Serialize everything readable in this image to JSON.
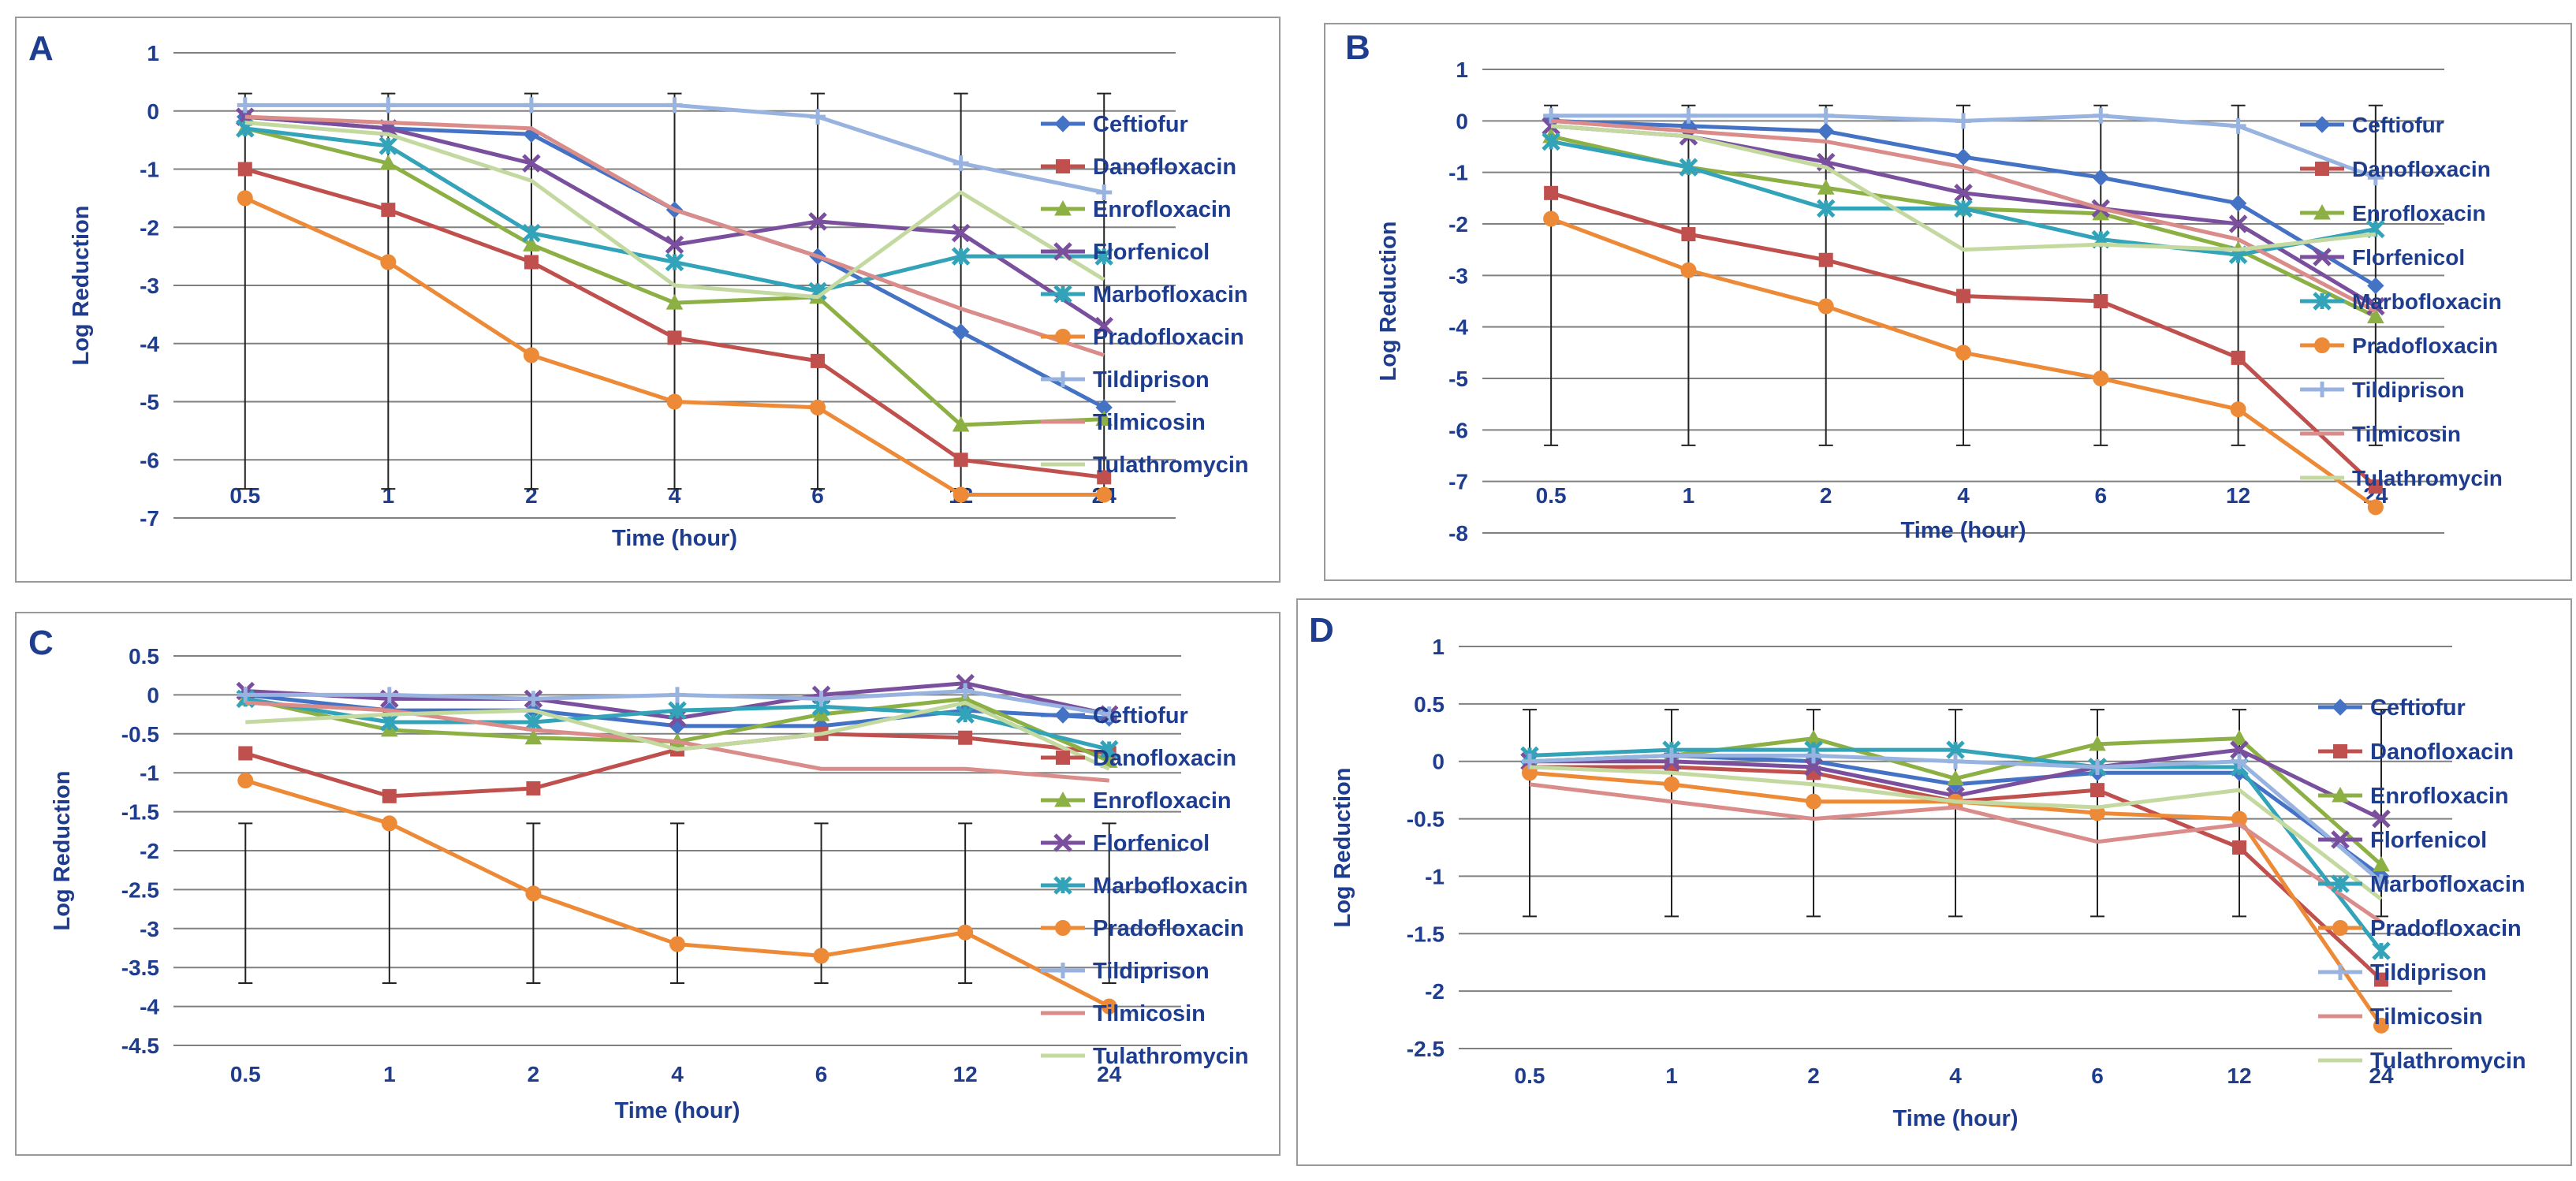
{
  "colors": {
    "Ceftiofur": "#4472C4",
    "Danofloxacin": "#C0504D",
    "Enrofloxacin": "#8DB045",
    "Florfenicol": "#7A4F9D",
    "Marbofloxacin": "#32A3B8",
    "Pradofloxacin": "#ED8A37",
    "Tildiprison": "#98B3DF",
    "Tilmicosin": "#DA8C8A",
    "Tulathromycin": "#C4D9A0",
    "axis_text": "#1F3D8F",
    "panel_label": "#1F3D8F",
    "error_bar": "#222222",
    "gridline": "#808080"
  },
  "chart_data": [
    {
      "panel": "A",
      "type": "line",
      "xlabel": "Time (hour)",
      "ylabel": "Log Reduction",
      "categories": [
        "0.5",
        "1",
        "2",
        "4",
        "6",
        "12",
        "24"
      ],
      "ylim": [
        -7,
        1
      ],
      "ytick_step": 1,
      "yticks": [
        "1",
        "0",
        "-1",
        "-2",
        "-3",
        "-4",
        "-5",
        "-6",
        "-7"
      ],
      "error_bar": {
        "upper": 0.3,
        "lower": -6.5
      },
      "series": [
        {
          "name": "Ceftiofur",
          "marker": "diamond",
          "values": [
            -0.1,
            -0.3,
            -0.4,
            -1.7,
            -2.5,
            -3.8,
            -5.1
          ]
        },
        {
          "name": "Danofloxacin",
          "marker": "square",
          "values": [
            -1.0,
            -1.7,
            -2.6,
            -3.9,
            -4.3,
            -6.0,
            -6.3
          ]
        },
        {
          "name": "Enrofloxacin",
          "marker": "triangle",
          "values": [
            -0.3,
            -0.9,
            -2.3,
            -3.3,
            -3.2,
            -5.4,
            -5.3
          ]
        },
        {
          "name": "Florfenicol",
          "marker": "x",
          "values": [
            -0.1,
            -0.3,
            -0.9,
            -2.3,
            -1.9,
            -2.1,
            -3.7
          ]
        },
        {
          "name": "Marbofloxacin",
          "marker": "star",
          "values": [
            -0.3,
            -0.6,
            -2.1,
            -2.6,
            -3.1,
            -2.5,
            -2.5
          ]
        },
        {
          "name": "Pradofloxacin",
          "marker": "circle",
          "values": [
            -1.5,
            -2.6,
            -4.2,
            -5.0,
            -5.1,
            -6.6,
            -6.6
          ]
        },
        {
          "name": "Tildiprison",
          "marker": "plus",
          "values": [
            0.1,
            0.1,
            0.1,
            0.1,
            -0.1,
            -0.9,
            -1.4
          ]
        },
        {
          "name": "Tilmicosin",
          "marker": "line",
          "values": [
            -0.1,
            -0.2,
            -0.3,
            -1.7,
            -2.5,
            -3.4,
            -4.2
          ]
        },
        {
          "name": "Tulathromycin",
          "marker": "line",
          "values": [
            -0.2,
            -0.4,
            -1.2,
            -3.0,
            -3.2,
            -1.4,
            -2.9
          ]
        }
      ]
    },
    {
      "panel": "B",
      "type": "line",
      "xlabel": "Time (hour)",
      "ylabel": "Log Reduction",
      "categories": [
        "0.5",
        "1",
        "2",
        "4",
        "6",
        "12",
        "24"
      ],
      "ylim": [
        -8,
        1
      ],
      "ytick_step": 1,
      "yticks": [
        "1",
        "0",
        "-1",
        "-2",
        "-3",
        "-4",
        "-5",
        "-6",
        "-7",
        "-8"
      ],
      "error_bar": {
        "upper": 0.3,
        "lower": -6.3
      },
      "series": [
        {
          "name": "Ceftiofur",
          "marker": "diamond",
          "values": [
            0.0,
            -0.1,
            -0.2,
            -0.7,
            -1.1,
            -1.6,
            -3.2
          ]
        },
        {
          "name": "Danofloxacin",
          "marker": "square",
          "values": [
            -1.4,
            -2.2,
            -2.7,
            -3.4,
            -3.5,
            -4.6,
            -7.1
          ]
        },
        {
          "name": "Enrofloxacin",
          "marker": "triangle",
          "values": [
            -0.3,
            -0.9,
            -1.3,
            -1.7,
            -1.8,
            -2.5,
            -3.8
          ]
        },
        {
          "name": "Florfenicol",
          "marker": "x",
          "values": [
            -0.1,
            -0.3,
            -0.8,
            -1.4,
            -1.7,
            -2.0,
            -3.6
          ]
        },
        {
          "name": "Marbofloxacin",
          "marker": "star",
          "values": [
            -0.4,
            -0.9,
            -1.7,
            -1.7,
            -2.3,
            -2.6,
            -2.1
          ]
        },
        {
          "name": "Pradofloxacin",
          "marker": "circle",
          "values": [
            -1.9,
            -2.9,
            -3.6,
            -4.5,
            -5.0,
            -5.6,
            -7.5
          ]
        },
        {
          "name": "Tildiprison",
          "marker": "plus",
          "values": [
            0.1,
            0.1,
            0.1,
            0.0,
            0.1,
            -0.1,
            -1.1
          ]
        },
        {
          "name": "Tilmicosin",
          "marker": "line",
          "values": [
            0.0,
            -0.2,
            -0.4,
            -0.9,
            -1.7,
            -2.3,
            -3.7
          ]
        },
        {
          "name": "Tulathromycin",
          "marker": "line",
          "values": [
            -0.1,
            -0.3,
            -0.9,
            -2.5,
            -2.4,
            -2.5,
            -2.2
          ]
        }
      ]
    },
    {
      "panel": "C",
      "type": "line",
      "xlabel": "Time (hour)",
      "ylabel": "Log Reduction",
      "categories": [
        "0.5",
        "1",
        "2",
        "4",
        "6",
        "12",
        "24"
      ],
      "ylim": [
        -4.5,
        0.5
      ],
      "ytick_step": 0.5,
      "yticks": [
        "0.5",
        "0",
        "-0.5",
        "-1",
        "-1.5",
        "-2",
        "-2.5",
        "-3",
        "-3.5",
        "-4",
        "-4.5"
      ],
      "error_bar": {
        "upper": -1.65,
        "lower": -3.7
      },
      "series": [
        {
          "name": "Ceftiofur",
          "marker": "diamond",
          "values": [
            0.0,
            -0.2,
            -0.2,
            -0.4,
            -0.4,
            -0.2,
            -0.3
          ]
        },
        {
          "name": "Danofloxacin",
          "marker": "square",
          "values": [
            -0.75,
            -1.3,
            -1.2,
            -0.7,
            -0.5,
            -0.55,
            -0.75
          ]
        },
        {
          "name": "Enrofloxacin",
          "marker": "triangle",
          "values": [
            -0.05,
            -0.45,
            -0.55,
            -0.6,
            -0.25,
            -0.05,
            -0.85
          ]
        },
        {
          "name": "Florfenicol",
          "marker": "x",
          "values": [
            0.05,
            -0.05,
            -0.05,
            -0.3,
            -0.0,
            0.15,
            -0.25
          ]
        },
        {
          "name": "Marbofloxacin",
          "marker": "star",
          "values": [
            -0.05,
            -0.35,
            -0.35,
            -0.2,
            -0.15,
            -0.25,
            -0.7
          ]
        },
        {
          "name": "Pradofloxacin",
          "marker": "circle",
          "values": [
            -1.1,
            -1.65,
            -2.55,
            -3.2,
            -3.35,
            -3.05,
            -4.0
          ]
        },
        {
          "name": "Tildiprison",
          "marker": "plus",
          "values": [
            0.0,
            0.0,
            -0.05,
            0.0,
            -0.05,
            0.05,
            -0.25
          ]
        },
        {
          "name": "Tilmicosin",
          "marker": "line",
          "values": [
            -0.1,
            -0.2,
            -0.45,
            -0.6,
            -0.95,
            -0.95,
            -1.1
          ]
        },
        {
          "name": "Tulathromycin",
          "marker": "line",
          "values": [
            -0.35,
            -0.25,
            -0.2,
            -0.7,
            -0.5,
            -0.1,
            -0.95
          ]
        }
      ]
    },
    {
      "panel": "D",
      "type": "line",
      "xlabel": "Time (hour)",
      "ylabel": "Log Reduction",
      "categories": [
        "0.5",
        "1",
        "2",
        "4",
        "6",
        "12",
        "24"
      ],
      "ylim": [
        -2.5,
        1
      ],
      "ytick_step": 0.5,
      "yticks": [
        "1",
        "0.5",
        "0",
        "-0.5",
        "-1",
        "-1.5",
        "-2",
        "-2.5"
      ],
      "error_bar": {
        "upper": 0.45,
        "lower": -1.35
      },
      "series": [
        {
          "name": "Ceftiofur",
          "marker": "diamond",
          "values": [
            0.0,
            0.05,
            0.0,
            -0.2,
            -0.1,
            -0.1,
            -1.0
          ]
        },
        {
          "name": "Danofloxacin",
          "marker": "square",
          "values": [
            -0.05,
            -0.05,
            -0.1,
            -0.35,
            -0.25,
            -0.75,
            -1.9
          ]
        },
        {
          "name": "Enrofloxacin",
          "marker": "triangle",
          "values": [
            0.0,
            0.05,
            0.2,
            -0.15,
            0.15,
            0.2,
            -0.9
          ]
        },
        {
          "name": "Florfenicol",
          "marker": "x",
          "values": [
            0.0,
            0.0,
            -0.05,
            -0.3,
            -0.05,
            0.1,
            -0.5
          ]
        },
        {
          "name": "Marbofloxacin",
          "marker": "star",
          "values": [
            0.05,
            0.1,
            0.1,
            0.1,
            -0.05,
            -0.05,
            -1.65
          ]
        },
        {
          "name": "Pradofloxacin",
          "marker": "circle",
          "values": [
            -0.1,
            -0.2,
            -0.35,
            -0.35,
            -0.45,
            -0.5,
            -2.3
          ]
        },
        {
          "name": "Tildiprison",
          "marker": "plus",
          "values": [
            0.0,
            0.05,
            0.05,
            0.0,
            -0.05,
            0.0,
            -1.05
          ]
        },
        {
          "name": "Tilmicosin",
          "marker": "line",
          "values": [
            -0.2,
            -0.35,
            -0.5,
            -0.4,
            -0.7,
            -0.55,
            -1.4
          ]
        },
        {
          "name": "Tulathromycin",
          "marker": "line",
          "values": [
            -0.05,
            -0.1,
            -0.2,
            -0.35,
            -0.4,
            -0.25,
            -1.2
          ]
        }
      ]
    }
  ]
}
